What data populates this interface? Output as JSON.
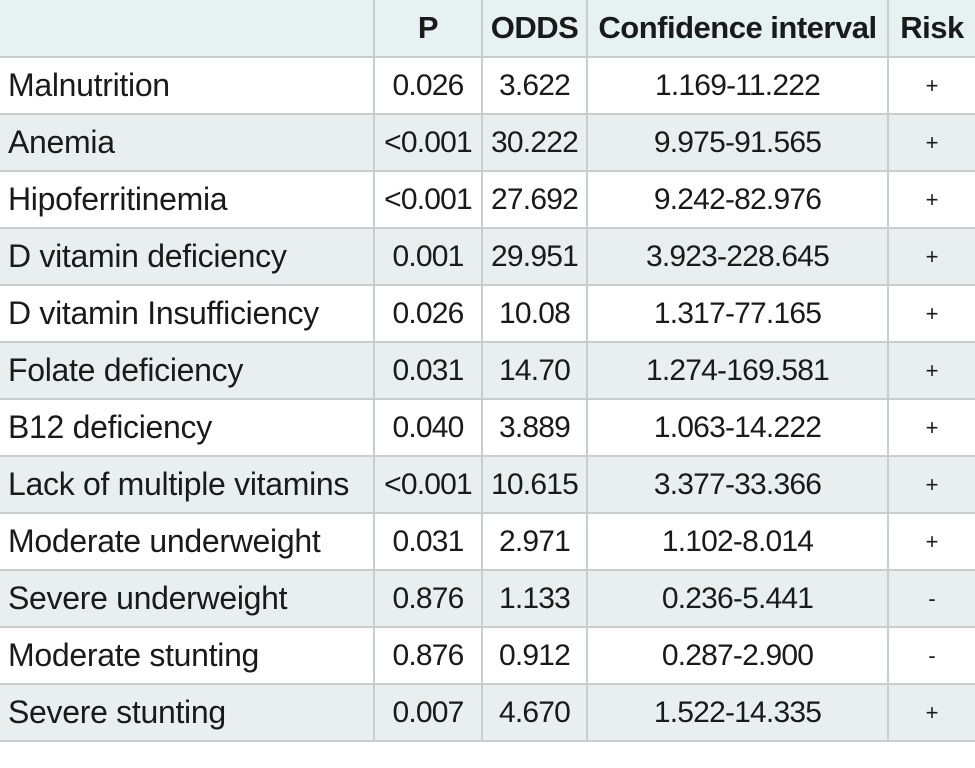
{
  "table": {
    "headers": [
      "",
      "P",
      "ODDS",
      "Confidence interval",
      "Risk"
    ],
    "rows": [
      {
        "label": "Malnutrition",
        "p": "0.026",
        "odds": "3.622",
        "ci": "1.169-11.222",
        "risk": "+"
      },
      {
        "label": "Anemia",
        "p": "<0.001",
        "odds": "30.222",
        "ci": "9.975-91.565",
        "risk": "+"
      },
      {
        "label": "Hipoferritinemia",
        "p": "<0.001",
        "odds": "27.692",
        "ci": "9.242-82.976",
        "risk": "+"
      },
      {
        "label": "D vitamin deficiency",
        "p": "0.001",
        "odds": "29.951",
        "ci": "3.923-228.645",
        "risk": "+"
      },
      {
        "label": "D vitamin Insufficiency",
        "p": "0.026",
        "odds": "10.08",
        "ci": "1.317-77.165",
        "risk": "+"
      },
      {
        "label": "Folate deficiency",
        "p": "0.031",
        "odds": "14.70",
        "ci": "1.274-169.581",
        "risk": "+"
      },
      {
        "label": "B12 deficiency",
        "p": "0.040",
        "odds": "3.889",
        "ci": "1.063-14.222",
        "risk": "+"
      },
      {
        "label": "Lack of multiple vitamins",
        "p": "<0.001",
        "odds": "10.615",
        "ci": "3.377-33.366",
        "risk": "+"
      },
      {
        "label": "Moderate underweight",
        "p": "0.031",
        "odds": "2.971",
        "ci": "1.102-8.014",
        "risk": "+"
      },
      {
        "label": "Severe underweight",
        "p": "0.876",
        "odds": "1.133",
        "ci": "0.236-5.441",
        "risk": "-"
      },
      {
        "label": "Moderate stunting",
        "p": "0.876",
        "odds": "0.912",
        "ci": "0.287-2.900",
        "risk": "-"
      },
      {
        "label": "Severe stunting",
        "p": "0.007",
        "odds": "4.670",
        "ci": "1.522-14.335",
        "risk": "+"
      }
    ]
  },
  "colors": {
    "header_bg": "#e6f1f1",
    "shaded_row_bg": "#e9eeee",
    "plain_row_bg": "#ffffff",
    "border": "#c8cdcd",
    "text": "#1a1a1a"
  }
}
